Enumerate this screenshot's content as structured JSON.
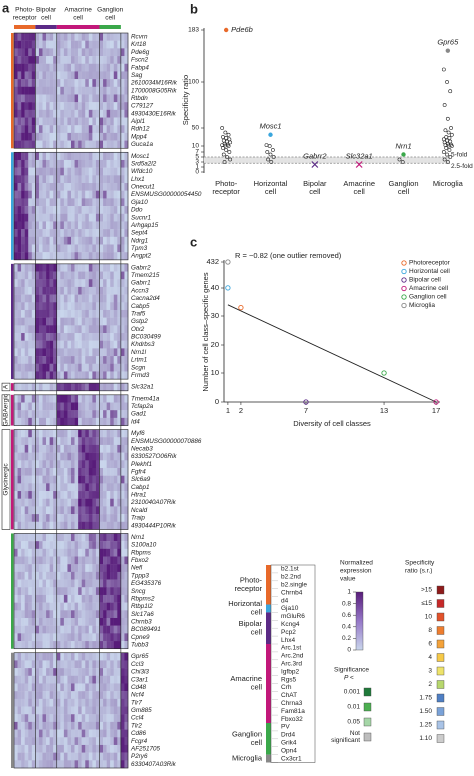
{
  "panel_a": {
    "letter": "a",
    "columns": [
      {
        "label_lines": [
          "Photo-",
          "receptor"
        ],
        "color": "#e8692a"
      },
      {
        "label_lines": [
          "Bipolar",
          "cell"
        ],
        "color": "#5b2a86"
      },
      {
        "label_lines": [
          "Amacrine",
          "cell"
        ],
        "color": "#c2187a"
      },
      {
        "label_lines": [
          "Ganglion",
          "cell"
        ],
        "color": "#3aa84a"
      }
    ],
    "groups": [
      {
        "color": "#e8692a",
        "genes": [
          "Rcvrn",
          "Krt18",
          "Pde6g",
          "Fscn2",
          "Fabp4",
          "Sag",
          "2610034M16Rik",
          "1700008G05Rik",
          "Rtbdn",
          "C79127",
          "4930430E16Rik",
          "Aipl1",
          "Rdh12",
          "Mpp4",
          "Guca1a"
        ]
      },
      {
        "color": "#3aa6dd",
        "genes": [
          "Mosc1",
          "Srd5a2l2",
          "Wfdc10",
          "Lhx1",
          "Onecut1",
          "ENSMUSG00000054450",
          "Gja10",
          "Ddo",
          "Sucnr1",
          "Arhgap15",
          "Sept4",
          "Ndrg1",
          "Tpm3",
          "Angpt2"
        ]
      },
      {
        "color": "#5b2a86",
        "genes": [
          "Gabrr2",
          "Tmem215",
          "Gabrr1",
          "Accn3",
          "Cacna2d4",
          "Cabp5",
          "Traf5",
          "Gstp2",
          "Otx2",
          "BC030499",
          "Khdrbs3",
          "Nrn1l",
          "Lrtm1",
          "Scgn",
          "Frmd3"
        ]
      },
      {
        "color": "#c2187a",
        "label": "A",
        "genes": [
          "Slc32a1"
        ]
      },
      {
        "color": "#c2187a",
        "label": "GABAergic",
        "genes": [
          "Tmem41a",
          "Tcfap2a",
          "Gad1",
          "Id4"
        ]
      },
      {
        "color": "#c2187a",
        "label": "Glycinergic",
        "genes": [
          "Myf6",
          "ENSMUSG00000070886",
          "Necab3",
          "6330527O06Rik",
          "Plekhf1",
          "Fgfr4",
          "Slc6a9",
          "Cabp1",
          "Htra1",
          "2310040A07Rik",
          "Ncald",
          "Traip",
          "4930444P10Rik"
        ]
      },
      {
        "color": "#3aa84a",
        "genes": [
          "Nrn1",
          "S100a10",
          "Rbpms",
          "Fbxo2",
          "Nefl",
          "Tppp3",
          "EG435376",
          "Sncg",
          "Rbpms2",
          "Rtbp1l2",
          "Slc17a6",
          "Chrnb3",
          "BC089491",
          "Cpne9",
          "Tubb3"
        ]
      },
      {
        "color": "#888888",
        "genes": [
          "Gpr65",
          "Ccl3",
          "Chi3l3",
          "C3ar1",
          "Cd48",
          "Ncf4",
          "Tlr7",
          "Gm885",
          "Ccl4",
          "Tlr2",
          "Cd86",
          "Fcgr4",
          "AF251705",
          "P2ry6",
          "6330407A03Rik"
        ]
      }
    ]
  },
  "panel_b": {
    "letter": "b",
    "type": "strip",
    "y_label": "Specificity ratio",
    "yticks": [
      0,
      1,
      3,
      5,
      7,
      10,
      50,
      100,
      183
    ],
    "fold_lines": [
      {
        "label": "5-fold",
        "value": 5
      },
      {
        "label": "2.5-fold",
        "value": 2.5
      }
    ],
    "categories": [
      {
        "label_lines": [
          "Photo-",
          "receptor"
        ],
        "color": "#e8692a",
        "highlight": {
          "label": "Pde6b",
          "value": 183
        },
        "values": [
          50,
          40,
          35,
          30,
          28,
          25,
          22,
          20,
          18,
          15,
          13,
          12,
          11,
          10,
          9,
          8,
          7,
          6,
          5,
          4,
          3
        ]
      },
      {
        "label_lines": [
          "Horizontal",
          "cell"
        ],
        "color": "#3aa6dd",
        "highlight": {
          "label": "Mosc1",
          "value": 35
        },
        "values": [
          12,
          10,
          8,
          7,
          6,
          5,
          4,
          3
        ]
      },
      {
        "label_lines": [
          "Bipolar",
          "cell"
        ],
        "color": "#5b2a86",
        "marker": "x",
        "highlight": {
          "label": "Gabrr2",
          "value": 2
        }
      },
      {
        "label_lines": [
          "Amacrine",
          "cell"
        ],
        "color": "#c2187a",
        "marker": "x",
        "highlight": {
          "label": "Slc32a1",
          "value": 2
        }
      },
      {
        "label_lines": [
          "Ganglion",
          "cell"
        ],
        "color": "#3aa84a",
        "highlight": {
          "label": "Nrn1",
          "value": 6
        },
        "values": [
          4,
          3
        ]
      },
      {
        "label_lines": [
          "Microglia"
        ],
        "color": "#888888",
        "highlight": {
          "label": "Gpr65",
          "value": 150
        },
        "values": [
          120,
          100,
          90,
          75,
          60,
          50,
          45,
          40,
          35,
          30,
          28,
          25,
          22,
          20,
          18,
          15,
          13,
          12,
          11,
          10,
          9,
          8,
          7,
          6,
          5,
          4,
          3
        ]
      }
    ]
  },
  "panel_c": {
    "letter": "c",
    "type": "scatter",
    "annotation": "R = −0.82 (one outlier removed)",
    "x_label": "Diversity of cell classes",
    "y_label": "Number of cell class–specific genes",
    "xlim": [
      0.7,
      17.3
    ],
    "xticks": [
      1,
      2,
      7,
      13,
      17
    ],
    "yticks": [
      0,
      10,
      20,
      30,
      40,
      432
    ],
    "series": [
      {
        "name": "Photoreceptor",
        "color": "#e8692a",
        "x": [
          2
        ],
        "y": [
          33
        ]
      },
      {
        "name": "Horizontal cell",
        "color": "#3aa6dd",
        "x": [
          1
        ],
        "y": [
          42
        ]
      },
      {
        "name": "Bipolar cell",
        "color": "#5b2a86",
        "x": [
          7
        ],
        "y": [
          0
        ]
      },
      {
        "name": "Amacrine cell",
        "color": "#c2187a",
        "x": [
          17
        ],
        "y": [
          0
        ]
      },
      {
        "name": "Ganglion cell",
        "color": "#3aa84a",
        "x": [
          13
        ],
        "y": [
          10
        ]
      },
      {
        "name": "Microglia",
        "color": "#888888",
        "x": [
          1
        ],
        "y": [
          432
        ]
      }
    ],
    "fit": {
      "x": [
        1,
        17
      ],
      "y": [
        34,
        0
      ]
    }
  },
  "legend": {
    "groups": [
      {
        "label_lines": [
          "Photo-",
          "receptor"
        ],
        "color": "#e8692a",
        "samples": [
          "b2.1st",
          "b2.2nd",
          "b2.single",
          "Chrnb4",
          "d4"
        ]
      },
      {
        "label_lines": [
          "Horizontal",
          "cell"
        ],
        "color": "#3aa6dd",
        "samples": [
          "Gja10"
        ]
      },
      {
        "label_lines": [
          "Bipolar",
          "cell"
        ],
        "color": "#5b2a86",
        "samples": [
          "mGluR6",
          "Kcng4",
          "Pcp2",
          "Lhx4"
        ]
      },
      {
        "label_lines": [
          "Amacrine",
          "cell"
        ],
        "color": "#c2187a",
        "samples": [
          "Arc.1st",
          "Arc.2nd",
          "Arc.3rd",
          "Igfbp2",
          "Rgs5",
          "Crh",
          "ChAT",
          "Chrna3",
          "Fam81a",
          "Fbxo32"
        ]
      },
      {
        "label_lines": [
          "Ganglion",
          "cell"
        ],
        "color": "#3aa84a",
        "samples": [
          "PV",
          "Drd4",
          "Grik4",
          "Opn4"
        ]
      },
      {
        "label_lines": [
          "Microglia"
        ],
        "color": "#888888",
        "samples": [
          "Cx3cr1"
        ]
      }
    ],
    "expression": {
      "title_lines": [
        "Normalized",
        "expression",
        "value"
      ],
      "ticks": [
        1,
        0.8,
        0.6,
        0.4,
        0.2,
        0
      ]
    },
    "specificity": {
      "title_lines": [
        "Specificity",
        "ratio (s.r.)"
      ],
      "levels": [
        {
          "label": ">15",
          "color": "#8e1b1b"
        },
        {
          "label": "≤15",
          "color": "#c62828"
        },
        {
          "label": "10",
          "color": "#e2522b"
        },
        {
          "label": "8",
          "color": "#ee7d2f"
        },
        {
          "label": "6",
          "color": "#f4a23a"
        },
        {
          "label": "4",
          "color": "#f6c947"
        },
        {
          "label": "3",
          "color": "#eee36a"
        },
        {
          "label": "2",
          "color": "#b7d76d"
        },
        {
          "label": "1.75",
          "color": "#4f7fc4"
        },
        {
          "label": "1.50",
          "color": "#7aa2d8"
        },
        {
          "label": "1.25",
          "color": "#a9c3e6"
        },
        {
          "label": "1.10",
          "color": "#cccccc"
        }
      ]
    },
    "significance": {
      "title": "Significance",
      "subtitle": "P <",
      "levels": [
        {
          "label_lines": [
            "0.001"
          ],
          "color": "#1f7a3a"
        },
        {
          "label_lines": [
            "0.01"
          ],
          "color": "#4caf50"
        },
        {
          "label_lines": [
            "0.05"
          ],
          "color": "#a5d6a7"
        },
        {
          "label_lines": [
            "Not",
            "significant"
          ],
          "color": "#bdbdbd"
        }
      ]
    }
  }
}
